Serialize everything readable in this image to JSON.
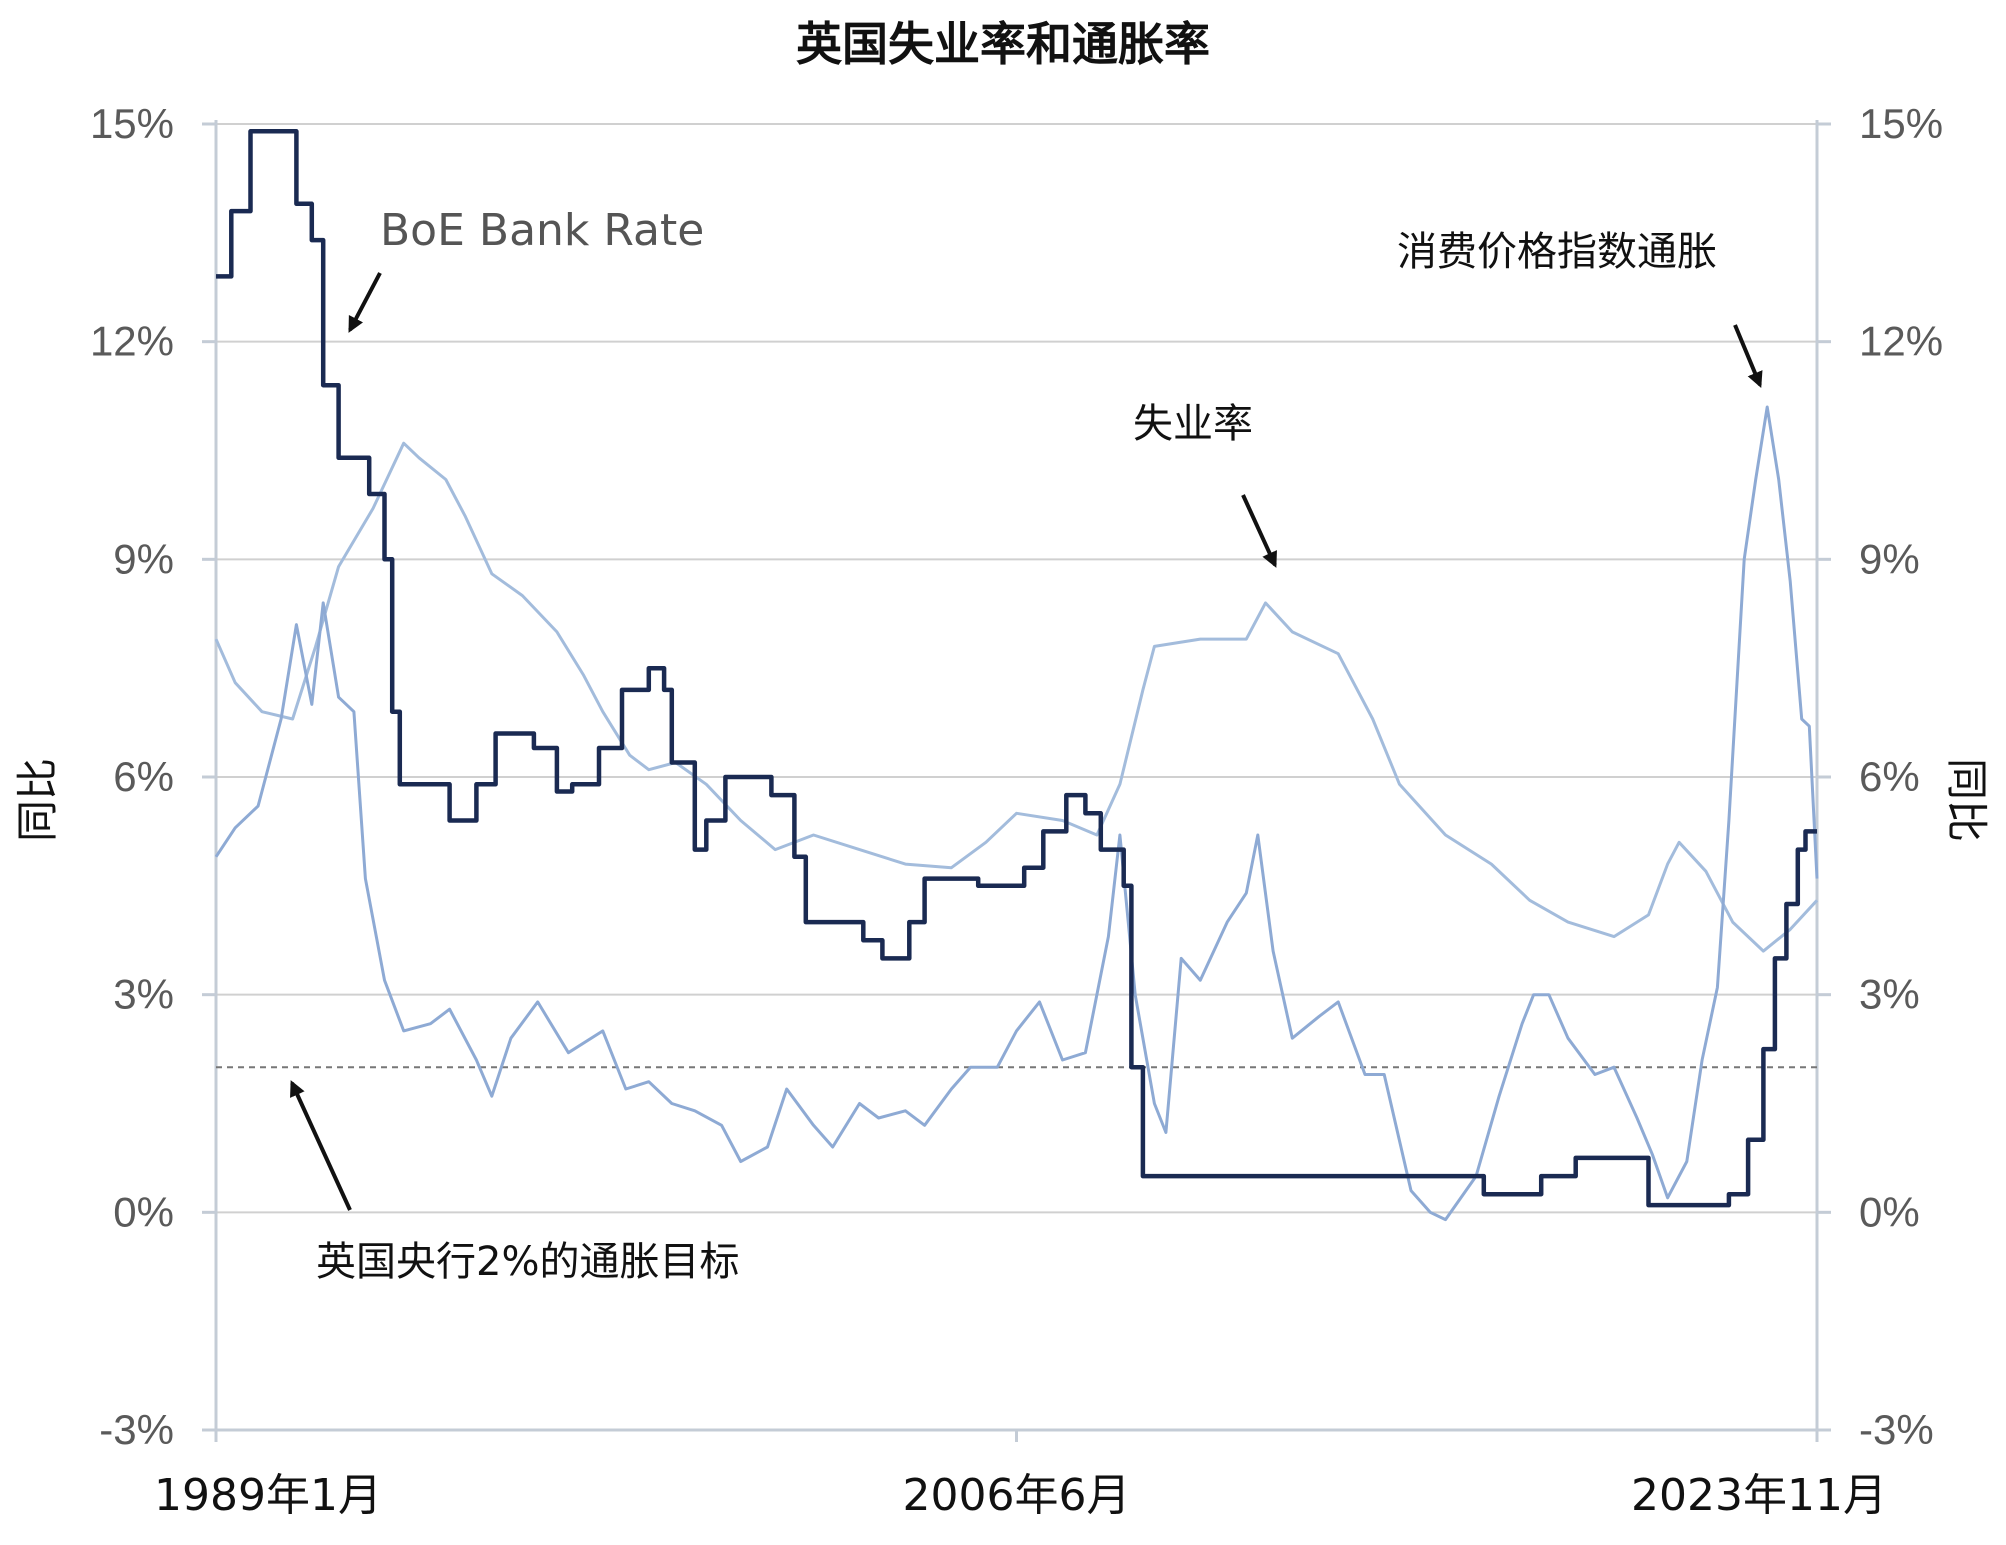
{
  "chart_data": {
    "type": "line",
    "title": "英国失业率和通胀率",
    "ylabel_left": "同比",
    "ylabel_right": "同比",
    "y_ticks": [
      "15%",
      "12%",
      "9%",
      "6%",
      "3%",
      "0%",
      "-3%"
    ],
    "y_tick_values": [
      15,
      12,
      9,
      6,
      3,
      0,
      -3
    ],
    "ylim": [
      -3,
      15
    ],
    "x_ticks": [
      "1989年1月",
      "2006年6月",
      "2023年11月"
    ],
    "x_tick_values": [
      "1989-01",
      "2006-06",
      "2023-11"
    ],
    "xlim": [
      "1989-01",
      "2023-11"
    ],
    "grid": true,
    "annotations": {
      "bank_rate": "BoE Bank Rate",
      "cpi": "消费价格指数通胀",
      "unemployment": "失业率",
      "target": "英国央行2%的通胀目标"
    },
    "target_value": 2,
    "colors": {
      "bank_rate": "#1a2a52",
      "unemployment": "#a3bcdc",
      "cpi": "#8eaad4",
      "grid": "#d0d0d0",
      "target": "#777777"
    },
    "series": [
      {
        "key": "bank_rate",
        "points": [
          [
            "1989-01",
            12.9
          ],
          [
            "1989-05",
            13.8
          ],
          [
            "1989-10",
            14.9
          ],
          [
            "1990-10",
            13.9
          ],
          [
            "1991-02",
            13.4
          ],
          [
            "1991-05",
            11.4
          ],
          [
            "1991-09",
            10.4
          ],
          [
            "1992-05",
            9.9
          ],
          [
            "1992-09",
            9.0
          ],
          [
            "1992-11",
            6.9
          ],
          [
            "1993-01",
            5.9
          ],
          [
            "1994-02",
            5.4
          ],
          [
            "1994-09",
            5.9
          ],
          [
            "1995-02",
            6.6
          ],
          [
            "1995-12",
            6.4
          ],
          [
            "1996-06",
            5.8
          ],
          [
            "1996-10",
            5.9
          ],
          [
            "1997-05",
            6.4
          ],
          [
            "1997-11",
            7.2
          ],
          [
            "1998-06",
            7.5
          ],
          [
            "1998-10",
            7.2
          ],
          [
            "1998-12",
            6.2
          ],
          [
            "1999-06",
            5.0
          ],
          [
            "1999-09",
            5.4
          ],
          [
            "2000-02",
            6.0
          ],
          [
            "2001-02",
            5.75
          ],
          [
            "2001-08",
            4.9
          ],
          [
            "2001-11",
            4.0
          ],
          [
            "2003-02",
            3.75
          ],
          [
            "2003-07",
            3.5
          ],
          [
            "2004-02",
            4.0
          ],
          [
            "2004-06",
            4.6
          ],
          [
            "2005-08",
            4.5
          ],
          [
            "2006-08",
            4.75
          ],
          [
            "2007-01",
            5.25
          ],
          [
            "2007-07",
            5.75
          ],
          [
            "2007-12",
            5.5
          ],
          [
            "2008-04",
            5.0
          ],
          [
            "2008-10",
            4.5
          ],
          [
            "2008-12",
            2.0
          ],
          [
            "2009-03",
            0.5
          ],
          [
            "2016-08",
            0.25
          ],
          [
            "2017-11",
            0.5
          ],
          [
            "2018-08",
            0.75
          ],
          [
            "2020-03",
            0.1
          ],
          [
            "2021-12",
            0.25
          ],
          [
            "2022-05",
            1.0
          ],
          [
            "2022-09",
            2.25
          ],
          [
            "2022-12",
            3.5
          ],
          [
            "2023-03",
            4.25
          ],
          [
            "2023-06",
            5.0
          ],
          [
            "2023-08",
            5.25
          ],
          [
            "2023-11",
            5.25
          ]
        ]
      },
      {
        "key": "unemployment",
        "points": [
          [
            "1989-01",
            7.9
          ],
          [
            "1989-06",
            7.3
          ],
          [
            "1990-01",
            6.9
          ],
          [
            "1990-09",
            6.8
          ],
          [
            "1991-03",
            7.8
          ],
          [
            "1991-09",
            8.9
          ],
          [
            "1992-06",
            9.7
          ],
          [
            "1993-02",
            10.6
          ],
          [
            "1993-06",
            10.4
          ],
          [
            "1994-01",
            10.1
          ],
          [
            "1994-06",
            9.6
          ],
          [
            "1995-01",
            8.8
          ],
          [
            "1995-09",
            8.5
          ],
          [
            "1996-06",
            8.0
          ],
          [
            "1997-01",
            7.4
          ],
          [
            "1997-06",
            6.9
          ],
          [
            "1998-01",
            6.3
          ],
          [
            "1998-06",
            6.1
          ],
          [
            "1999-01",
            6.2
          ],
          [
            "1999-09",
            5.9
          ],
          [
            "2000-06",
            5.4
          ],
          [
            "2001-03",
            5.0
          ],
          [
            "2002-01",
            5.2
          ],
          [
            "2003-01",
            5.0
          ],
          [
            "2004-01",
            4.8
          ],
          [
            "2005-01",
            4.75
          ],
          [
            "2005-10",
            5.1
          ],
          [
            "2006-06",
            5.5
          ],
          [
            "2007-06",
            5.4
          ],
          [
            "2008-03",
            5.2
          ],
          [
            "2008-09",
            5.9
          ],
          [
            "2009-03",
            7.2
          ],
          [
            "2009-06",
            7.8
          ],
          [
            "2010-06",
            7.9
          ],
          [
            "2011-06",
            7.9
          ],
          [
            "2011-11",
            8.4
          ],
          [
            "2012-06",
            8.0
          ],
          [
            "2013-06",
            7.7
          ],
          [
            "2014-03",
            6.8
          ],
          [
            "2014-10",
            5.9
          ],
          [
            "2015-10",
            5.2
          ],
          [
            "2016-10",
            4.8
          ],
          [
            "2017-08",
            4.3
          ],
          [
            "2018-06",
            4.0
          ],
          [
            "2019-06",
            3.8
          ],
          [
            "2020-03",
            4.1
          ],
          [
            "2020-08",
            4.8
          ],
          [
            "2020-11",
            5.1
          ],
          [
            "2021-06",
            4.7
          ],
          [
            "2022-01",
            4.0
          ],
          [
            "2022-09",
            3.6
          ],
          [
            "2023-04",
            3.9
          ],
          [
            "2023-11",
            4.3
          ]
        ]
      },
      {
        "key": "cpi",
        "points": [
          [
            "1989-01",
            4.9
          ],
          [
            "1989-06",
            5.3
          ],
          [
            "1989-12",
            5.6
          ],
          [
            "1990-06",
            6.8
          ],
          [
            "1990-10",
            8.1
          ],
          [
            "1991-02",
            7.0
          ],
          [
            "1991-05",
            8.4
          ],
          [
            "1991-09",
            7.1
          ],
          [
            "1992-01",
            6.9
          ],
          [
            "1992-04",
            4.6
          ],
          [
            "1992-09",
            3.2
          ],
          [
            "1993-02",
            2.5
          ],
          [
            "1993-09",
            2.6
          ],
          [
            "1994-02",
            2.8
          ],
          [
            "1994-09",
            2.1
          ],
          [
            "1995-01",
            1.6
          ],
          [
            "1995-06",
            2.4
          ],
          [
            "1996-01",
            2.9
          ],
          [
            "1996-09",
            2.2
          ],
          [
            "1997-06",
            2.5
          ],
          [
            "1997-12",
            1.7
          ],
          [
            "1998-06",
            1.8
          ],
          [
            "1998-12",
            1.5
          ],
          [
            "1999-06",
            1.4
          ],
          [
            "2000-01",
            1.2
          ],
          [
            "2000-06",
            0.7
          ],
          [
            "2001-01",
            0.9
          ],
          [
            "2001-06",
            1.7
          ],
          [
            "2002-01",
            1.2
          ],
          [
            "2002-06",
            0.9
          ],
          [
            "2003-01",
            1.5
          ],
          [
            "2003-06",
            1.3
          ],
          [
            "2004-01",
            1.4
          ],
          [
            "2004-06",
            1.2
          ],
          [
            "2005-01",
            1.7
          ],
          [
            "2005-06",
            2.0
          ],
          [
            "2006-01",
            2.0
          ],
          [
            "2006-06",
            2.5
          ],
          [
            "2006-12",
            2.9
          ],
          [
            "2007-06",
            2.1
          ],
          [
            "2007-12",
            2.2
          ],
          [
            "2008-06",
            3.8
          ],
          [
            "2008-09",
            5.2
          ],
          [
            "2009-01",
            3.0
          ],
          [
            "2009-06",
            1.5
          ],
          [
            "2009-09",
            1.1
          ],
          [
            "2010-01",
            3.5
          ],
          [
            "2010-06",
            3.2
          ],
          [
            "2011-01",
            4.0
          ],
          [
            "2011-06",
            4.4
          ],
          [
            "2011-09",
            5.2
          ],
          [
            "2012-01",
            3.6
          ],
          [
            "2012-06",
            2.4
          ],
          [
            "2013-01",
            2.7
          ],
          [
            "2013-06",
            2.9
          ],
          [
            "2014-01",
            1.9
          ],
          [
            "2014-06",
            1.9
          ],
          [
            "2015-01",
            0.3
          ],
          [
            "2015-06",
            0.0
          ],
          [
            "2015-10",
            -0.1
          ],
          [
            "2016-06",
            0.5
          ],
          [
            "2016-12",
            1.6
          ],
          [
            "2017-06",
            2.6
          ],
          [
            "2017-09",
            3.0
          ],
          [
            "2018-01",
            3.0
          ],
          [
            "2018-06",
            2.4
          ],
          [
            "2019-01",
            1.9
          ],
          [
            "2019-06",
            2.0
          ],
          [
            "2019-12",
            1.3
          ],
          [
            "2020-04",
            0.8
          ],
          [
            "2020-08",
            0.2
          ],
          [
            "2021-01",
            0.7
          ],
          [
            "2021-05",
            2.1
          ],
          [
            "2021-09",
            3.1
          ],
          [
            "2021-12",
            5.4
          ],
          [
            "2022-04",
            9.0
          ],
          [
            "2022-07",
            10.1
          ],
          [
            "2022-10",
            11.1
          ],
          [
            "2023-01",
            10.1
          ],
          [
            "2023-04",
            8.7
          ],
          [
            "2023-07",
            6.8
          ],
          [
            "2023-09",
            6.7
          ],
          [
            "2023-11",
            4.6
          ]
        ]
      }
    ]
  }
}
